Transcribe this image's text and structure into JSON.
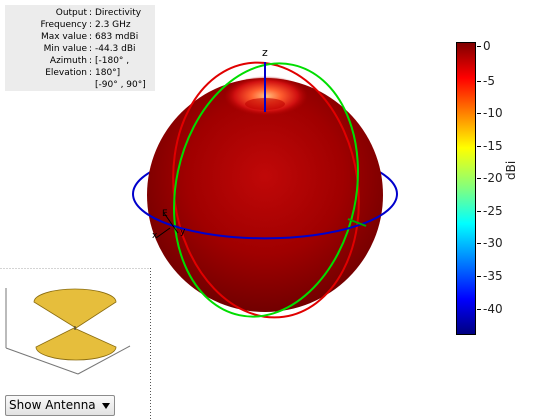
{
  "info": {
    "rows": [
      {
        "label": "Output",
        "value": "Directivity"
      },
      {
        "label": "Frequency",
        "value": "2.3 GHz"
      },
      {
        "label": "Max value",
        "value": "683 mdBi"
      },
      {
        "label": "Min value",
        "value": "-44.3 dBi"
      },
      {
        "label": "Azimuth",
        "value": "[-180° ,"
      },
      {
        "label": "Elevation",
        "value": "180°]"
      }
    ],
    "extra_line": "[-90° , 90°]"
  },
  "axes": {
    "z": "z",
    "x": "x",
    "y": "y"
  },
  "colorbar": {
    "unit": "dBi",
    "ticks": [
      "0",
      "-5",
      "-10",
      "-15",
      "-20",
      "-25",
      "-30",
      "-35",
      "-40"
    ],
    "colors": [
      "#800000",
      "#ff0000",
      "#ff8000",
      "#ffff00",
      "#80ff80",
      "#00ffff",
      "#0080ff",
      "#0000ff",
      "#000080"
    ]
  },
  "pattern_colors": {
    "sphere_dark": "#6e0000",
    "sphere_mid": "#b40808",
    "sphere_light": "#ff6a3a",
    "azimuth_ring": "#0000cc",
    "elevation_ring_red": "#e00000",
    "elevation_ring_green": "#00dd00",
    "antenna_fill": "#e6be3c"
  },
  "dropdown": {
    "label": "Show Antenna"
  }
}
